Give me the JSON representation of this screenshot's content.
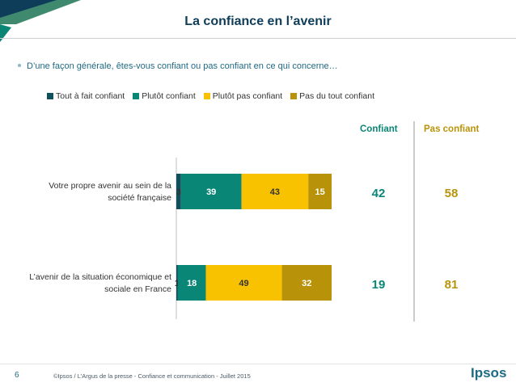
{
  "page": {
    "title": "La confiance en l’avenir",
    "question": "D’une façon générale, êtes-vous confiant ou pas confiant en ce qui concerne…",
    "page_number": "6",
    "footer": "©Ipsos / L'Argus de la presse - Confiance et communication - Juillet 2015",
    "logo_text": "Ipsos"
  },
  "colors": {
    "dark_teal": "#124f5c",
    "teal": "#0a8676",
    "yellow": "#f9c200",
    "gold": "#b8930a",
    "title_blue": "#0e3d5a"
  },
  "columns": {
    "confiant": "Confiant",
    "pas_confiant": "Pas confiant"
  },
  "chart_data": {
    "type": "bar",
    "orientation": "horizontal",
    "stacked": true,
    "categories": [
      "Votre propre avenir au sein de la société française",
      "L’avenir de la situation économique et sociale en France"
    ],
    "category_lines": [
      [
        "Votre propre avenir au sein de la",
        "société française"
      ],
      [
        "L’avenir de la situation économique et",
        "sociale en France"
      ]
    ],
    "series": [
      {
        "name": "Tout à fait confiant",
        "values": [
          3,
          1
        ],
        "color": "#124f5c"
      },
      {
        "name": "Plutôt confiant",
        "values": [
          39,
          18
        ],
        "color": "#0a8676"
      },
      {
        "name": "Plutôt pas confiant",
        "values": [
          43,
          49
        ],
        "color": "#f9c200"
      },
      {
        "name": "Pas du tout confiant",
        "values": [
          15,
          32
        ],
        "color": "#b8930a"
      }
    ],
    "totals": {
      "confiant": [
        42,
        19
      ],
      "pas_confiant": [
        58,
        81
      ]
    },
    "xlim": [
      0,
      100
    ],
    "legend": "top",
    "grid": false
  }
}
